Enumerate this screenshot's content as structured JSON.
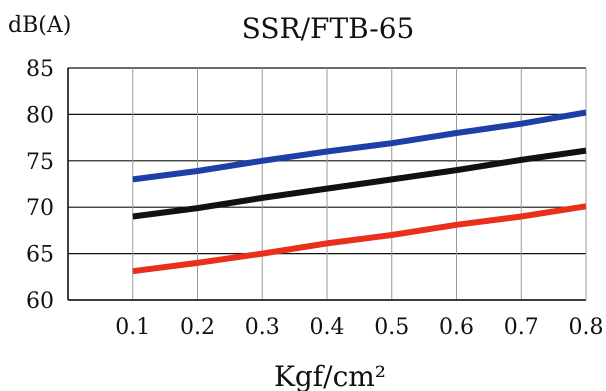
{
  "chart_data": {
    "type": "line",
    "title": "SSR/FTB-65",
    "xlabel": "Kgf/cm²",
    "ylabel": "dB(A)",
    "x": [
      0.1,
      0.2,
      0.3,
      0.4,
      0.5,
      0.6,
      0.7,
      0.8
    ],
    "x_ticks": [
      "0.1",
      "0.2",
      "0.3",
      "0.4",
      "0.5",
      "0.6",
      "0.7",
      "0.8"
    ],
    "y_ticks": [
      "60",
      "65",
      "70",
      "75",
      "80",
      "85"
    ],
    "xlim": [
      0,
      0.8
    ],
    "ylim": [
      60,
      85
    ],
    "grid": true,
    "series": [
      {
        "color": "#1f3fa8",
        "values": [
          73.0,
          73.9,
          75.0,
          76.0,
          76.9,
          78.0,
          79.0,
          80.2
        ]
      },
      {
        "color": "#111111",
        "values": [
          69.0,
          69.9,
          71.0,
          72.0,
          73.0,
          74.0,
          75.1,
          76.1
        ]
      },
      {
        "color": "#e8301c",
        "values": [
          63.1,
          64.0,
          65.0,
          66.1,
          67.0,
          68.1,
          69.0,
          70.1
        ]
      }
    ]
  }
}
